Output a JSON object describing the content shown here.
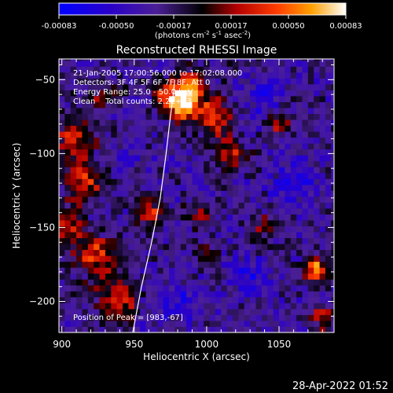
{
  "chart_data": {
    "type": "heatmap",
    "title": "Reconstructed RHESSI Image",
    "xlabel": "Heliocentric X (arcsec)",
    "ylabel": "Heliocentric Y (arcsec)",
    "xlim": [
      898,
      1088
    ],
    "ylim": [
      -221,
      -36
    ],
    "xticks": [
      900,
      950,
      1000,
      1050
    ],
    "yticks": [
      -50,
      -100,
      -150,
      -200
    ],
    "colorbar": {
      "range": [
        -0.00083,
        0.00083
      ],
      "ticks": [
        "-0.00083",
        "-0.00050",
        "-0.00017",
        "0.00017",
        "0.00050",
        "0.00083"
      ],
      "unit": "(photons cm",
      "unit_parts": [
        "(photons cm",
        "-2",
        " s",
        "-1",
        " asec",
        "-2",
        ")"
      ]
    },
    "limb_line": [
      [
        949,
        -221
      ],
      [
        955,
        -190
      ],
      [
        962,
        -160
      ],
      [
        968,
        -130
      ],
      [
        972,
        -100
      ],
      [
        975,
        -75
      ],
      [
        977,
        -60
      ],
      [
        978,
        -50
      ]
    ],
    "annotations": {
      "line1": "21-Jan-2005 17:00:56.000 to 17:02:08.000",
      "line2": "Detectors: 3F 4F 5F 6F 7F 8F, Att 0",
      "line3": "Energy Range: 25.0 - 50.0 keV",
      "line4": "Clean    Total counts: 2.2E+03",
      "peak": "Position of Peak = [983,-67]"
    },
    "blobs": [
      {
        "x": 983,
        "y": -67,
        "amp": 1.0,
        "s": 7
      },
      {
        "x": 988,
        "y": -55,
        "amp": 0.8,
        "s": 8
      },
      {
        "x": 1005,
        "y": -75,
        "amp": 0.6,
        "s": 9
      },
      {
        "x": 1015,
        "y": -100,
        "amp": 0.5,
        "s": 8
      },
      {
        "x": 1050,
        "y": -80,
        "amp": 0.45,
        "s": 6
      },
      {
        "x": 1075,
        "y": -178,
        "amp": 0.8,
        "s": 6
      },
      {
        "x": 1080,
        "y": -210,
        "amp": 0.5,
        "s": 6
      },
      {
        "x": 908,
        "y": -90,
        "amp": 0.55,
        "s": 10
      },
      {
        "x": 915,
        "y": -120,
        "amp": 0.55,
        "s": 10
      },
      {
        "x": 925,
        "y": -170,
        "amp": 0.6,
        "s": 10
      },
      {
        "x": 938,
        "y": -200,
        "amp": 0.6,
        "s": 9
      },
      {
        "x": 905,
        "y": -150,
        "amp": 0.5,
        "s": 8
      },
      {
        "x": 960,
        "y": -140,
        "amp": 0.55,
        "s": 7
      },
      {
        "x": 970,
        "y": -60,
        "amp": 0.5,
        "s": 6
      },
      {
        "x": 995,
        "y": -140,
        "amp": 0.35,
        "s": 6
      },
      {
        "x": 1000,
        "y": -170,
        "amp": 0.35,
        "s": 6
      },
      {
        "x": 930,
        "y": -60,
        "amp": 0.4,
        "s": 7
      },
      {
        "x": 1040,
        "y": -150,
        "amp": 0.3,
        "s": 7
      },
      {
        "x": 1060,
        "y": -120,
        "amp": -0.3,
        "s": 10
      },
      {
        "x": 1040,
        "y": -60,
        "amp": -0.3,
        "s": 10
      },
      {
        "x": 1030,
        "y": -185,
        "amp": -0.3,
        "s": 10
      },
      {
        "x": 980,
        "y": -200,
        "amp": -0.25,
        "s": 10
      },
      {
        "x": 945,
        "y": -100,
        "amp": -0.2,
        "s": 6
      }
    ]
  },
  "footer": {
    "timestamp": "28-Apr-2022 01:52"
  }
}
